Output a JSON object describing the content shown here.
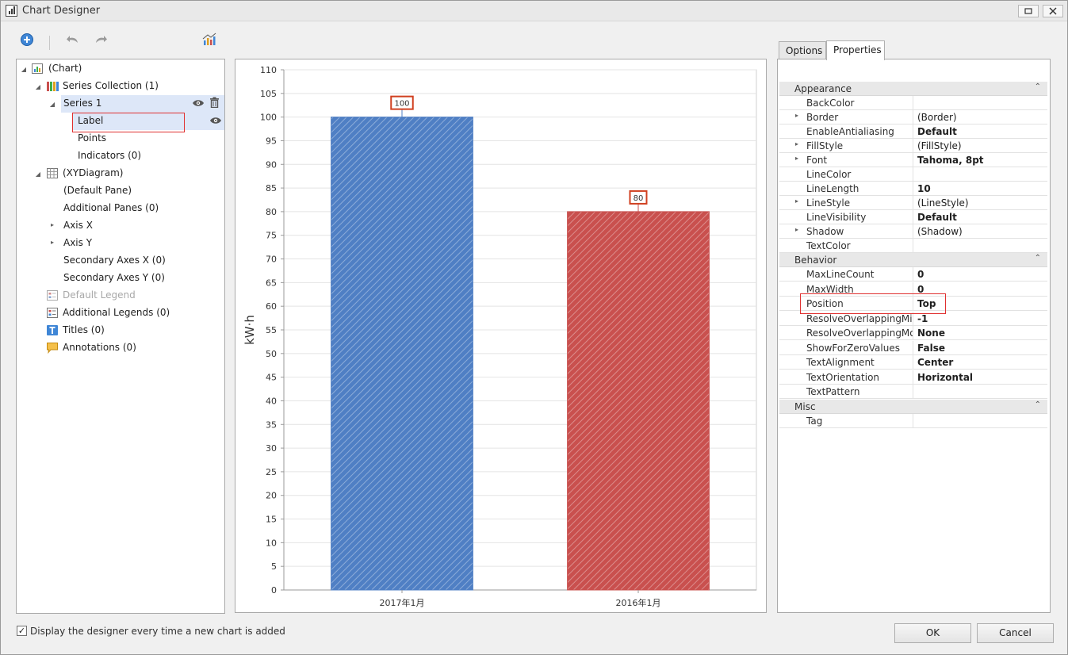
{
  "window": {
    "title": "Chart Designer",
    "controls": [
      "minimize",
      "maximize",
      "close"
    ]
  },
  "toolbar": {
    "icons": [
      "add-icon",
      "undo-icon",
      "redo-icon",
      "chart-wizard-icon"
    ]
  },
  "tree": {
    "items": [
      {
        "label": "(Chart)"
      },
      {
        "label": "Series Collection (1)"
      },
      {
        "label": "Series 1"
      },
      {
        "label": "Label"
      },
      {
        "label": "Points"
      },
      {
        "label": "Indicators (0)"
      },
      {
        "label": "(XYDiagram)"
      },
      {
        "label": "(Default Pane)"
      },
      {
        "label": "Additional Panes (0)"
      },
      {
        "label": "Axis X"
      },
      {
        "label": "Axis Y"
      },
      {
        "label": "Secondary Axes X (0)"
      },
      {
        "label": "Secondary Axes Y (0)"
      },
      {
        "label": "Default Legend"
      },
      {
        "label": "Additional Legends (0)"
      },
      {
        "label": "Titles (0)"
      },
      {
        "label": "Annotations (0)"
      }
    ]
  },
  "chart_data": {
    "type": "bar",
    "categories": [
      "2017年1月",
      "2016年1月"
    ],
    "values": [
      100,
      80
    ],
    "data_labels": [
      "100",
      "80"
    ],
    "colors": [
      "#4f7fc4",
      "#c9504e"
    ],
    "ylabel": "kW·h",
    "ylim": [
      0,
      110
    ],
    "ytick_step": 5,
    "grid": true
  },
  "tabs": [
    {
      "label": "Options"
    },
    {
      "label": "Properties"
    }
  ],
  "properties": {
    "categories": [
      {
        "name": "Appearance",
        "rows": [
          {
            "name": "BackColor",
            "value": ""
          },
          {
            "name": "Border",
            "value": "(Border)"
          },
          {
            "name": "EnableAntialiasing",
            "value": "Default"
          },
          {
            "name": "FillStyle",
            "value": "(FillStyle)"
          },
          {
            "name": "Font",
            "value": "Tahoma, 8pt"
          },
          {
            "name": "LineColor",
            "value": ""
          },
          {
            "name": "LineLength",
            "value": "10"
          },
          {
            "name": "LineStyle",
            "value": "(LineStyle)"
          },
          {
            "name": "LineVisibility",
            "value": "Default"
          },
          {
            "name": "Shadow",
            "value": "(Shadow)"
          },
          {
            "name": "TextColor",
            "value": ""
          }
        ]
      },
      {
        "name": "Behavior",
        "rows": [
          {
            "name": "MaxLineCount",
            "value": "0"
          },
          {
            "name": "MaxWidth",
            "value": "0"
          },
          {
            "name": "Position",
            "value": "Top"
          },
          {
            "name": "ResolveOverlappingMinIndent",
            "value": "-1"
          },
          {
            "name": "ResolveOverlappingMode",
            "value": "None"
          },
          {
            "name": "ShowForZeroValues",
            "value": "False"
          },
          {
            "name": "TextAlignment",
            "value": "Center"
          },
          {
            "name": "TextOrientation",
            "value": "Horizontal"
          },
          {
            "name": "TextPattern",
            "value": ""
          }
        ]
      },
      {
        "name": "Misc",
        "rows": [
          {
            "name": "Tag",
            "value": ""
          }
        ]
      }
    ]
  },
  "footer": {
    "checkbox_label": "Display the designer every time a new chart is added",
    "checkbox_checked": true,
    "ok_label": "OK",
    "cancel_label": "Cancel"
  }
}
